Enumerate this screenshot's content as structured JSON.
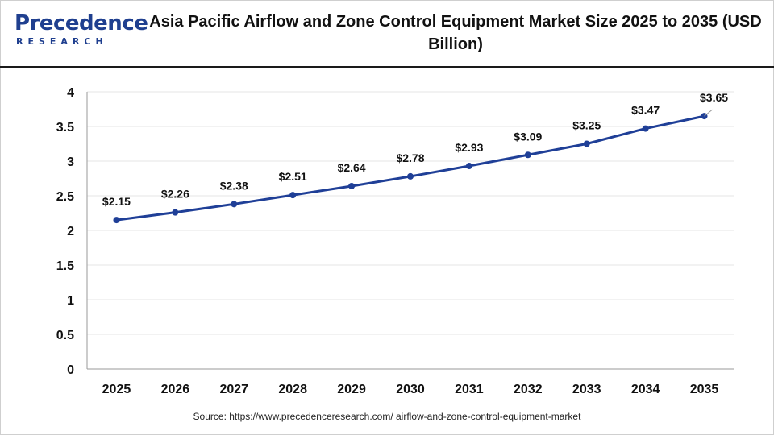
{
  "brand": {
    "logo_word_top": "Precedence",
    "logo_word_bottom": "RESEARCH",
    "color": "#1f3f8f"
  },
  "title": "Asia Pacific Airflow and Zone Control Equipment Market Size 2025 to 2035 (USD Billion)",
  "source": "Source: https://www.precedenceresearch.com/ airflow-and-zone-control-equipment-market",
  "chart_data": {
    "type": "line",
    "categories": [
      "2025",
      "2026",
      "2027",
      "2028",
      "2029",
      "2030",
      "2031",
      "2032",
      "2033",
      "2034",
      "2035"
    ],
    "series": [
      {
        "values": [
          2.15,
          2.26,
          2.38,
          2.51,
          2.64,
          2.78,
          2.93,
          3.09,
          3.25,
          3.47,
          3.65
        ],
        "labels": [
          "$2.15",
          "$2.26",
          "$2.38",
          "$2.51",
          "$2.64",
          "$2.78",
          "$2.93",
          "$3.09",
          "$3.25",
          "$3.47",
          "$3.65"
        ],
        "color": "#1f3f97"
      }
    ],
    "ylim": [
      0,
      4
    ],
    "yticks": [
      "0",
      "0.5",
      "1",
      "1.5",
      "2",
      "2.5",
      "3",
      "3.5",
      "4"
    ],
    "xlabel": "",
    "ylabel": "",
    "grid": true,
    "grid_color": "#e6e6e6"
  }
}
